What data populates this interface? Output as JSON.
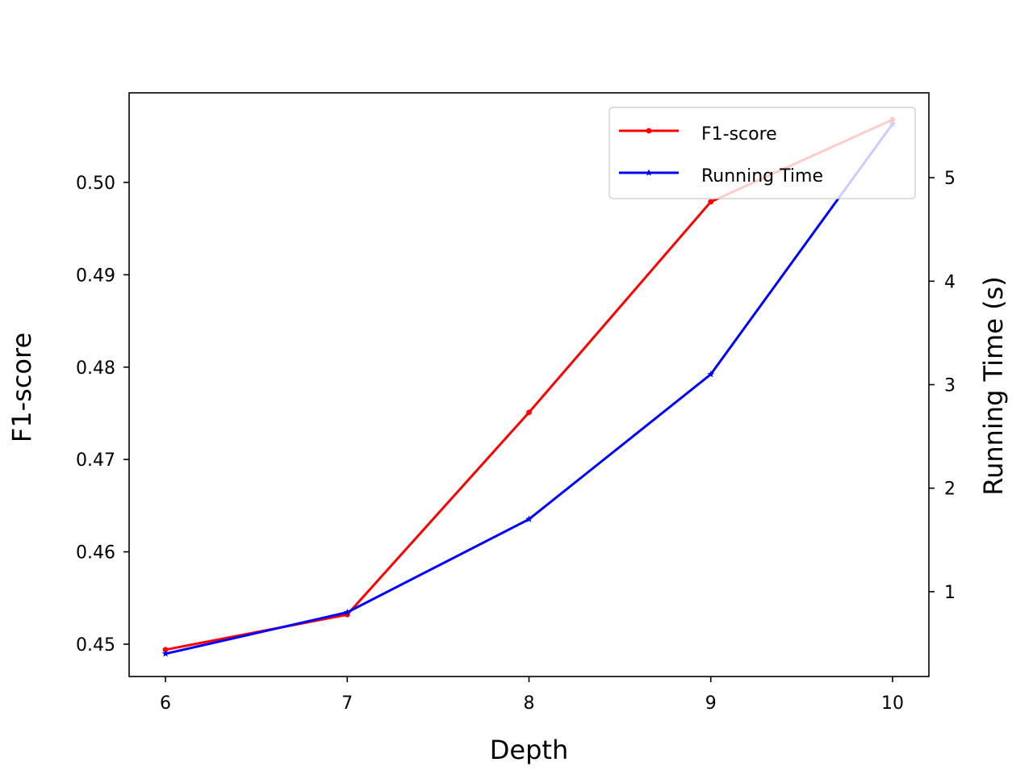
{
  "chart_data": {
    "type": "line",
    "xlabel": "Depth",
    "ylabel": "F1-score",
    "y2label": "Running Time (s)",
    "x": [
      6,
      7,
      8,
      9,
      10
    ],
    "xlim": [
      5.8,
      10.2
    ],
    "ylim": [
      0.4465,
      0.5097
    ],
    "y2lim": [
      0.18,
      5.82
    ],
    "x_ticks": [
      "6",
      "7",
      "8",
      "9",
      "10"
    ],
    "y_ticks": [
      "0.45",
      "0.46",
      "0.47",
      "0.48",
      "0.49",
      "0.50"
    ],
    "y2_ticks": [
      "1",
      "2",
      "3",
      "4",
      "5"
    ],
    "legend_position": "top-right",
    "series": [
      {
        "name": "F1-score",
        "axis": "left",
        "color": "#ff0000",
        "marker": "dot",
        "values": [
          0.4494,
          0.4532,
          0.4751,
          0.4979,
          0.5068
        ]
      },
      {
        "name": "Running Time",
        "axis": "right",
        "color": "#0000ff",
        "marker": "star",
        "values": [
          0.4,
          0.8,
          1.7,
          3.1,
          5.52
        ]
      }
    ]
  }
}
